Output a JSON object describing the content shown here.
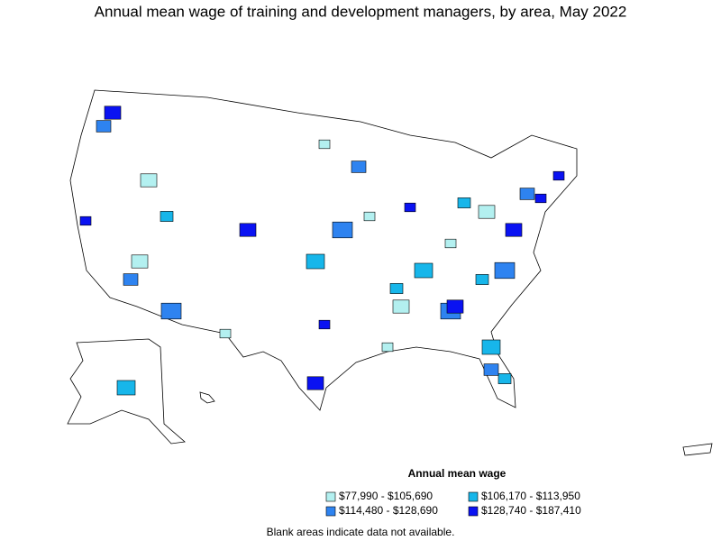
{
  "title": "Annual mean wage of training and development managers, by area, May 2022",
  "legend": {
    "title": "Annual mean wage",
    "items": [
      {
        "label": "$77,990 - $105,690",
        "color": "#b3f0f0"
      },
      {
        "label": "$106,170 - $113,950",
        "color": "#17b6ea"
      },
      {
        "label": "$114,480 - $128,690",
        "color": "#2e83f0"
      },
      {
        "label": "$128,740 - $187,410",
        "color": "#0a12f2"
      }
    ]
  },
  "note": "Blank areas indicate data not available."
}
